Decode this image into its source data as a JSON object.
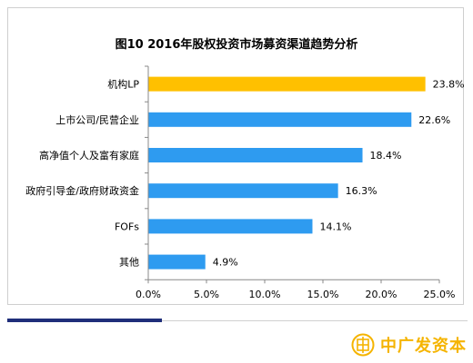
{
  "chart_data": {
    "type": "bar",
    "orientation": "horizontal",
    "title": "图10 2016年股权投资市场募资渠道趋势分析",
    "categories": [
      "机构LP",
      "上市公司/民营企业",
      "高净值个人及富有家庭",
      "政府引导金/政府财政资金",
      "FOFs",
      "其他"
    ],
    "values": [
      23.8,
      22.6,
      18.4,
      16.3,
      14.1,
      4.9
    ],
    "data_labels": [
      "23.8%",
      "22.6%",
      "18.4%",
      "16.3%",
      "14.1%",
      "4.9%"
    ],
    "bar_colors": [
      "#ffc000",
      "#2e9bf0",
      "#2e9bf0",
      "#2e9bf0",
      "#2e9bf0",
      "#2e9bf0"
    ],
    "x_ticks": [
      "0.0%",
      "5.0%",
      "10.0%",
      "15.0%",
      "20.0%",
      "25.0%"
    ],
    "xlim": [
      0,
      25
    ],
    "xlabel": "",
    "ylabel": "",
    "grid": false,
    "legend": "none"
  },
  "watermark": {
    "text": "中广发资本",
    "color": "#f5b400"
  }
}
